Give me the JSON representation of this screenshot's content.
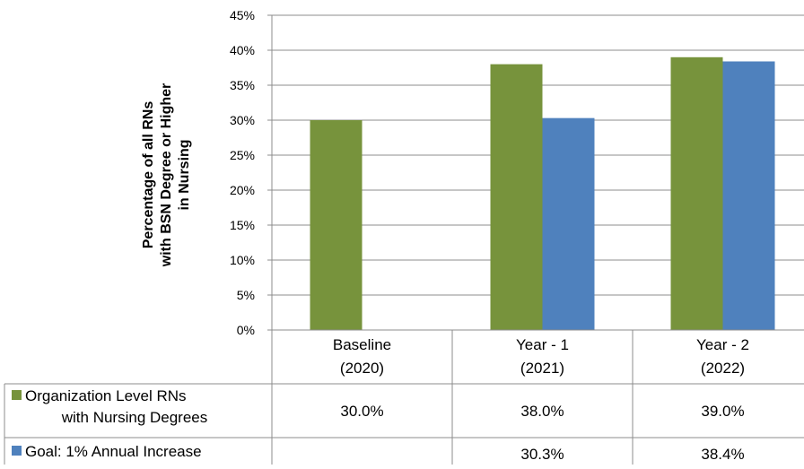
{
  "chart_data": {
    "type": "bar",
    "ylabel_lines": [
      "Percentage of all RNs",
      "with BSN Degree or Higher",
      "in Nursing"
    ],
    "yticks": [
      "0%",
      "5%",
      "10%",
      "15%",
      "20%",
      "25%",
      "30%",
      "35%",
      "40%",
      "45%"
    ],
    "ylim": [
      0,
      45
    ],
    "categories": [
      {
        "line1": "Baseline",
        "line2": "(2020)"
      },
      {
        "line1": "Year - 1",
        "line2": "(2021)"
      },
      {
        "line1": "Year - 2",
        "line2": "(2022)"
      }
    ],
    "series": [
      {
        "name_lines": [
          "Organization Level RNs",
          "with Nursing Degrees"
        ],
        "color": "#77933c",
        "values": [
          30.0,
          38.0,
          39.0
        ],
        "labels": [
          "30.0%",
          "38.0%",
          "39.0%"
        ]
      },
      {
        "name_lines": [
          "Goal: 1% Annual Increase"
        ],
        "color": "#4f81bd",
        "values": [
          null,
          30.3,
          38.4
        ],
        "labels": [
          "",
          "30.3%",
          "38.4%"
        ]
      }
    ],
    "grid": true,
    "legend": "data-table"
  }
}
